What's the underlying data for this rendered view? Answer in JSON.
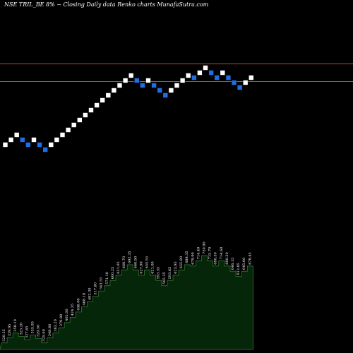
{
  "header": {
    "title": "NSE TRIL_BE 8% ~ Closing Daily data Renko charts MunafaSutra.com"
  },
  "colors": {
    "background": "#000000",
    "up_brick": "#ffffff",
    "down_brick": "#1e6fe6",
    "line": "#b8551f",
    "volume_fill": "#06260a",
    "volume_stroke": "#2f7a2f",
    "text": "#ffffff"
  },
  "chart_data": {
    "type": "renko",
    "price_levels": [
      90.5,
      115.5
    ],
    "bricks": [
      {
        "dir": "up",
        "level": 205
      },
      {
        "dir": "up",
        "level": 198
      },
      {
        "dir": "up",
        "level": 191
      },
      {
        "dir": "down",
        "level": 198
      },
      {
        "dir": "down",
        "level": 205
      },
      {
        "dir": "up",
        "level": 198
      },
      {
        "dir": "down",
        "level": 205
      },
      {
        "dir": "down",
        "level": 212
      },
      {
        "dir": "up",
        "level": 205
      },
      {
        "dir": "up",
        "level": 198
      },
      {
        "dir": "up",
        "level": 191
      },
      {
        "dir": "up",
        "level": 184
      },
      {
        "dir": "up",
        "level": 177
      },
      {
        "dir": "up",
        "level": 170
      },
      {
        "dir": "up",
        "level": 163
      },
      {
        "dir": "up",
        "level": 156
      },
      {
        "dir": "up",
        "level": 149
      },
      {
        "dir": "up",
        "level": 142
      },
      {
        "dir": "up",
        "level": 135
      },
      {
        "dir": "up",
        "level": 128
      },
      {
        "dir": "up",
        "level": 121
      },
      {
        "dir": "up",
        "level": 114
      },
      {
        "dir": "up",
        "level": 107
      },
      {
        "dir": "down",
        "level": 114
      },
      {
        "dir": "down",
        "level": 121
      },
      {
        "dir": "up",
        "level": 114
      },
      {
        "dir": "down",
        "level": 121
      },
      {
        "dir": "down",
        "level": 128
      },
      {
        "dir": "down",
        "level": 135
      },
      {
        "dir": "up",
        "level": 128
      },
      {
        "dir": "up",
        "level": 121
      },
      {
        "dir": "up",
        "level": 114
      },
      {
        "dir": "up",
        "level": 107
      },
      {
        "dir": "down",
        "level": 110
      },
      {
        "dir": "up",
        "level": 103
      },
      {
        "dir": "up",
        "level": 96
      },
      {
        "dir": "down",
        "level": 103
      },
      {
        "dir": "down",
        "level": 110
      },
      {
        "dir": "up",
        "level": 103
      },
      {
        "dir": "down",
        "level": 110
      },
      {
        "dir": "down",
        "level": 117
      },
      {
        "dir": "down",
        "level": 124
      },
      {
        "dir": "up",
        "level": 117
      },
      {
        "dir": "up",
        "level": 110
      }
    ],
    "volume": [
      {
        "label": "320.35",
        "value": 10
      },
      {
        "label": "339.95",
        "value": 18
      },
      {
        "label": "358.10",
        "value": 25
      },
      {
        "label": "325.20",
        "value": 20
      },
      {
        "label": "327.65",
        "value": 15
      },
      {
        "label": "355.85",
        "value": 22
      },
      {
        "label": "329.50",
        "value": 17
      },
      {
        "label": "325.00",
        "value": 10
      },
      {
        "label": "348.80",
        "value": 18
      },
      {
        "label": "363.20",
        "value": 25
      },
      {
        "label": "379.80",
        "value": 33
      },
      {
        "label": "402.00",
        "value": 41
      },
      {
        "label": "424.35",
        "value": 49
      },
      {
        "label": "446.00",
        "value": 57
      },
      {
        "label": "468.10",
        "value": 65
      },
      {
        "label": "492.30",
        "value": 73
      },
      {
        "label": "517.80",
        "value": 81
      },
      {
        "label": "543.55",
        "value": 89
      },
      {
        "label": "571.10",
        "value": 97
      },
      {
        "label": "600.25",
        "value": 105
      },
      {
        "label": "631.05",
        "value": 113
      },
      {
        "label": "660.70",
        "value": 121
      },
      {
        "label": "692.35",
        "value": 129
      },
      {
        "label": "660.90",
        "value": 121
      },
      {
        "label": "627.90",
        "value": 113
      },
      {
        "label": "655.55",
        "value": 121
      },
      {
        "label": "621.00",
        "value": 113
      },
      {
        "label": "593.55",
        "value": 105
      },
      {
        "label": "565.25",
        "value": 97
      },
      {
        "label": "593.65",
        "value": 105
      },
      {
        "label": "623.95",
        "value": 113
      },
      {
        "label": "655.80",
        "value": 121
      },
      {
        "label": "688.35",
        "value": 129
      },
      {
        "label": "679.90",
        "value": 127
      },
      {
        "label": "714.40",
        "value": 135
      },
      {
        "label": "750.90",
        "value": 143
      },
      {
        "label": "715.70",
        "value": 135
      },
      {
        "label": "680.50",
        "value": 127
      },
      {
        "label": "714.60",
        "value": 135
      },
      {
        "label": "680.20",
        "value": 127
      },
      {
        "label": "646.15",
        "value": 119
      },
      {
        "label": "613.85",
        "value": 111
      },
      {
        "label": "645.00",
        "value": 119
      },
      {
        "label": "678.45",
        "value": 127
      }
    ],
    "volume_max": 145
  }
}
